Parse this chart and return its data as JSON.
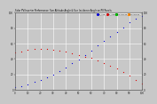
{
  "title": "Solar PV/Inverter Performance  Sun Altitude Angle & Sun Incidence Angle on PV Panels",
  "legend": [
    "Alt_Ang",
    "Inc_Ang",
    "CAPACIT10",
    "CAPACI100"
  ],
  "legend_colors": [
    "#0000dd",
    "#dd0000",
    "#00bb00",
    "#ff8800"
  ],
  "bg_color": "#c8c8c8",
  "plot_bg": "#c8c8c8",
  "grid_color": "#aaaaaa",
  "blue_x": [
    0,
    5,
    10,
    15,
    20,
    25,
    30,
    35,
    40,
    45,
    50,
    55,
    60,
    65,
    70,
    75,
    80,
    85,
    90,
    95,
    100
  ],
  "blue_y": [
    3,
    5,
    7,
    10,
    13,
    16,
    20,
    24,
    29,
    34,
    39,
    45,
    51,
    57,
    63,
    69,
    75,
    81,
    87,
    92,
    96
  ],
  "red_x": [
    0,
    5,
    10,
    15,
    20,
    25,
    30,
    35,
    40,
    45,
    50,
    55,
    60,
    65,
    70,
    75,
    80,
    85,
    90,
    95,
    100
  ],
  "red_y": [
    48,
    50,
    52,
    53,
    53,
    53,
    52,
    51,
    49,
    47,
    45,
    43,
    41,
    38,
    35,
    31,
    27,
    23,
    18,
    13,
    8
  ],
  "xlim": [
    0,
    100
  ],
  "ylim": [
    0,
    100
  ],
  "ytick_vals": [
    0,
    20,
    40,
    60,
    80,
    100
  ],
  "ytick_labels": [
    "0",
    "20",
    "40",
    "60",
    "80",
    "100"
  ],
  "xtick_vals": [
    0,
    10,
    20,
    30,
    40,
    50,
    60,
    70,
    80,
    90,
    100
  ],
  "xtick_labels": [
    "0",
    "10",
    "20",
    "30",
    "40",
    "50",
    "60",
    "70",
    "80",
    "90",
    "100"
  ]
}
